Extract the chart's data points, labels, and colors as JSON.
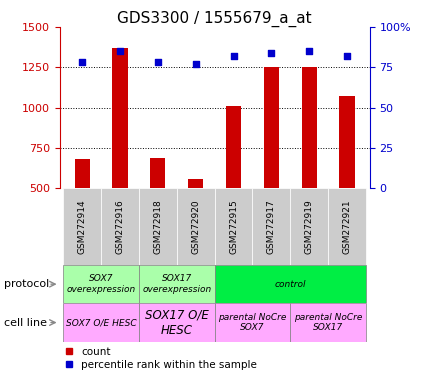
{
  "title": "GDS3300 / 1555679_a_at",
  "samples": [
    "GSM272914",
    "GSM272916",
    "GSM272918",
    "GSM272920",
    "GSM272915",
    "GSM272917",
    "GSM272919",
    "GSM272921"
  ],
  "counts": [
    680,
    1370,
    685,
    555,
    1010,
    1250,
    1250,
    1070
  ],
  "percentiles": [
    78,
    85,
    78,
    77,
    82,
    84,
    85,
    82
  ],
  "ylim_left": [
    500,
    1500
  ],
  "ylim_right": [
    0,
    100
  ],
  "yticks_left": [
    500,
    750,
    1000,
    1250,
    1500
  ],
  "yticks_right": [
    0,
    25,
    50,
    75,
    100
  ],
  "bar_color": "#cc0000",
  "dot_color": "#0000cc",
  "protocol_groups": [
    {
      "label": "SOX7\noverexpression",
      "start": 0,
      "end": 2,
      "color": "#aaffaa"
    },
    {
      "label": "SOX17\noverexpression",
      "start": 2,
      "end": 4,
      "color": "#aaffaa"
    },
    {
      "label": "control",
      "start": 4,
      "end": 8,
      "color": "#00ee44"
    }
  ],
  "cellline_groups": [
    {
      "label": "SOX7 O/E HESC",
      "start": 0,
      "end": 2,
      "color": "#ffaaff",
      "fontsize": 6.5
    },
    {
      "label": "SOX17 O/E\nHESC",
      "start": 2,
      "end": 4,
      "color": "#ffaaff",
      "fontsize": 8.5
    },
    {
      "label": "parental NoCre\nSOX7",
      "start": 4,
      "end": 6,
      "color": "#ffaaff",
      "fontsize": 6.5
    },
    {
      "label": "parental NoCre\nSOX17",
      "start": 6,
      "end": 8,
      "color": "#ffaaff",
      "fontsize": 6.5
    }
  ],
  "protocol_label": "protocol",
  "cellline_label": "cell line",
  "legend_count_label": "count",
  "legend_pct_label": "percentile rank within the sample",
  "bg_color": "#ffffff",
  "tick_label_color_left": "#cc0000",
  "tick_label_color_right": "#0000cc",
  "grid_color": "#000000",
  "title_fontsize": 11,
  "sample_bg_color": "#cccccc",
  "arrow_color": "#888888"
}
